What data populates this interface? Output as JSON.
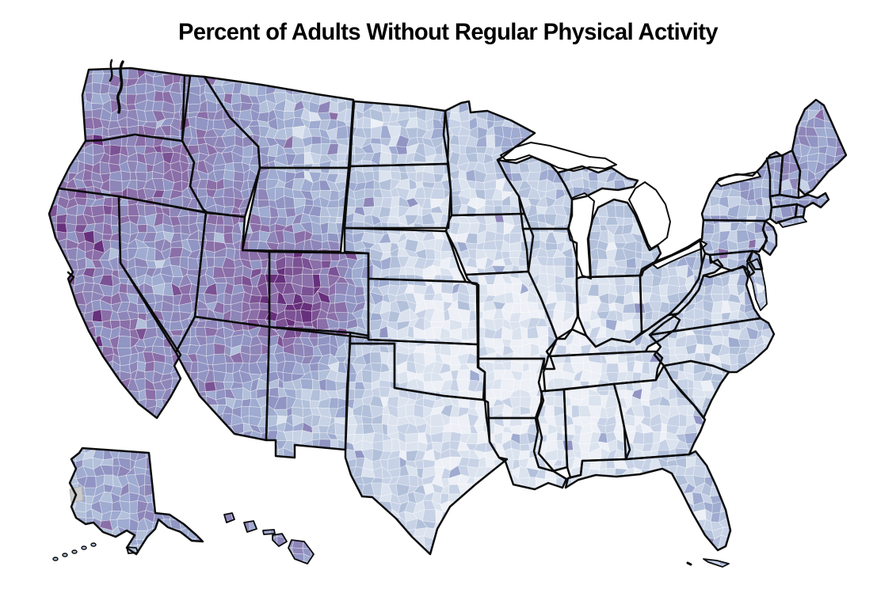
{
  "title": {
    "text": "Percent of Adults Without Regular Physical Activity"
  },
  "map": {
    "kind": "us-county-choropleth",
    "projection_style": "albers-usa-with-alaska-hawaii-insets",
    "legend_visible": false,
    "labels_visible": false,
    "colors": {
      "background": "#ffffff",
      "water": "#ffffff",
      "state_border": "#0b0b0b",
      "county_border": "rgba(255,255,255,0.55)",
      "no_data": "#c9c9c9"
    },
    "palette": [
      "#edf0f6",
      "#dbe3ef",
      "#c7d2e6",
      "#b2c0da",
      "#9fabd0",
      "#9195c3",
      "#8e86b8",
      "#8a6fa8",
      "#7b5294",
      "#67307c"
    ],
    "shade_scale_note": "0 = lightest (fewest inactive adults), 9 = darkest purple (most)",
    "states": [
      {
        "abbr": "WA",
        "shade": 5
      },
      {
        "abbr": "OR",
        "shade": 6
      },
      {
        "abbr": "CA",
        "shade": 6
      },
      {
        "abbr": "NV",
        "shade": 3
      },
      {
        "abbr": "ID",
        "shade": 4
      },
      {
        "abbr": "MT",
        "shade": 3
      },
      {
        "abbr": "WY",
        "shade": 3
      },
      {
        "abbr": "UT",
        "shade": 5
      },
      {
        "abbr": "CO",
        "shade": 7
      },
      {
        "abbr": "AZ",
        "shade": 5
      },
      {
        "abbr": "NM",
        "shade": 5
      },
      {
        "abbr": "ND",
        "shade": 2
      },
      {
        "abbr": "SD",
        "shade": 2
      },
      {
        "abbr": "NE",
        "shade": 1
      },
      {
        "abbr": "KS",
        "shade": 1
      },
      {
        "abbr": "OK",
        "shade": 2
      },
      {
        "abbr": "TX",
        "shade": 2
      },
      {
        "abbr": "MN",
        "shade": 3
      },
      {
        "abbr": "IA",
        "shade": 2
      },
      {
        "abbr": "MO",
        "shade": 2
      },
      {
        "abbr": "AR",
        "shade": 1
      },
      {
        "abbr": "LA",
        "shade": 2
      },
      {
        "abbr": "WI",
        "shade": 3
      },
      {
        "abbr": "IL",
        "shade": 3
      },
      {
        "abbr": "MI",
        "shade": 3
      },
      {
        "abbr": "IN",
        "shade": 3
      },
      {
        "abbr": "OH",
        "shade": 3
      },
      {
        "abbr": "KY",
        "shade": 2
      },
      {
        "abbr": "TN",
        "shade": 1
      },
      {
        "abbr": "MS",
        "shade": 1
      },
      {
        "abbr": "AL",
        "shade": 1
      },
      {
        "abbr": "GA",
        "shade": 2
      },
      {
        "abbr": "FL",
        "shade": 3
      },
      {
        "abbr": "SC",
        "shade": 2
      },
      {
        "abbr": "NC",
        "shade": 2
      },
      {
        "abbr": "VA",
        "shade": 2
      },
      {
        "abbr": "WV",
        "shade": 2
      },
      {
        "abbr": "MD",
        "shade": 3
      },
      {
        "abbr": "DE",
        "shade": 3
      },
      {
        "abbr": "NJ",
        "shade": 3
      },
      {
        "abbr": "PA",
        "shade": 3
      },
      {
        "abbr": "NY",
        "shade": 3
      },
      {
        "abbr": "CT",
        "shade": 3
      },
      {
        "abbr": "RI",
        "shade": 3
      },
      {
        "abbr": "MA",
        "shade": 3
      },
      {
        "abbr": "VT",
        "shade": 4
      },
      {
        "abbr": "NH",
        "shade": 4
      },
      {
        "abbr": "ME",
        "shade": 4
      },
      {
        "abbr": "AK",
        "shade": 3
      },
      {
        "abbr": "HI",
        "shade": 5
      }
    ]
  }
}
